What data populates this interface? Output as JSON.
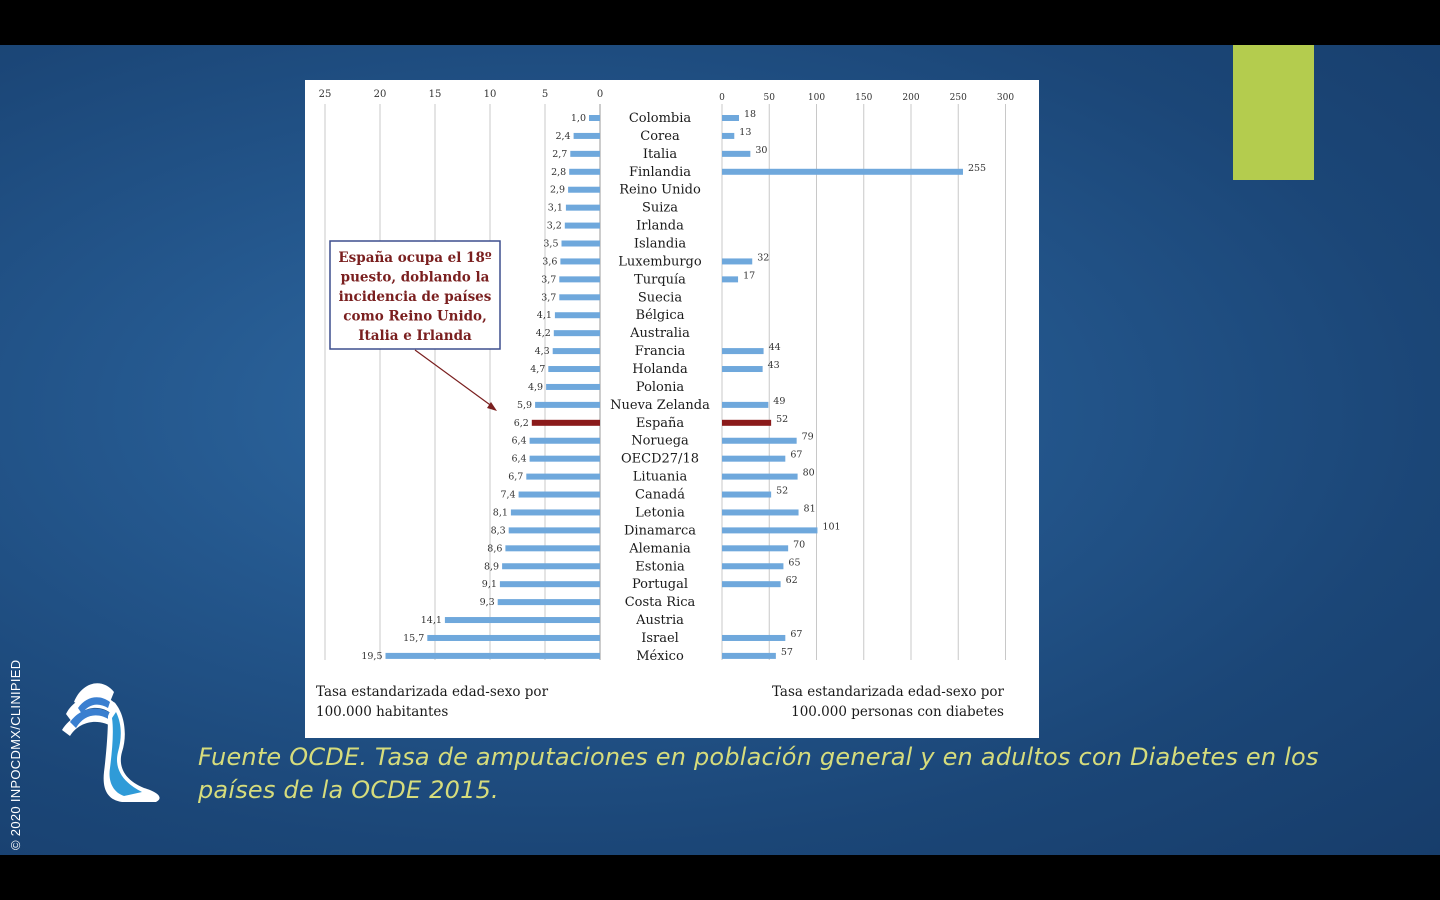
{
  "caption": "Fuente OCDE. Tasa de amputaciones en población general y en adultos con Diabetes en los países de la OCDE 2015.",
  "copyright": "© 2020 INPOCDMX/CLINIPIED",
  "annotation": [
    "España ocupa el 18º",
    "puesto, doblando la",
    "incidencia de países",
    "como Reino Unido,",
    "Italia e Irlanda"
  ],
  "colors": {
    "bar": "#6fa8dc",
    "highlight": "#8b1a1a",
    "accent": "#b4cc4e",
    "caption": "#d6dc7c"
  },
  "chart_data": [
    {
      "type": "bar",
      "orientation": "horizontal-reversed",
      "xlabel": [
        "Tasa estandarizada edad-sexo por",
        "100.000 habitantes"
      ],
      "xlim": [
        0,
        25
      ],
      "xticks": [
        "25",
        "20",
        "15",
        "10",
        "5",
        "0"
      ],
      "categories": [
        "Colombia",
        "Corea",
        "Italia",
        "Finlandia",
        "Reino Unido",
        "Suiza",
        "Irlanda",
        "Islandia",
        "Luxemburgo",
        "Turquía",
        "Suecia",
        "Bélgica",
        "Australia",
        "Francia",
        "Holanda",
        "Polonia",
        "Nueva Zelanda",
        "España",
        "Noruega",
        "OECD27/18",
        "Lituania",
        "Canadá",
        "Letonia",
        "Dinamarca",
        "Alemania",
        "Estonia",
        "Portugal",
        "Costa Rica",
        "Austria",
        "Israel",
        "México"
      ],
      "values": [
        1.0,
        2.4,
        2.7,
        2.8,
        2.9,
        3.1,
        3.2,
        3.5,
        3.6,
        3.7,
        3.7,
        4.1,
        4.2,
        4.3,
        4.7,
        4.9,
        5.9,
        6.2,
        6.4,
        6.4,
        6.7,
        7.4,
        8.1,
        8.3,
        8.6,
        8.9,
        9.1,
        9.3,
        14.1,
        15.7,
        19.5
      ],
      "value_labels": [
        "1,0",
        "2,4",
        "2,7",
        "2,8",
        "2,9",
        "3,1",
        "3,2",
        "3,5",
        "3,6",
        "3,7",
        "3,7",
        "4,1",
        "4,2",
        "4,3",
        "4,7",
        "4,9",
        "5,9",
        "6,2",
        "6,4",
        "6,4",
        "6,7",
        "7,4",
        "8,1",
        "8,3",
        "8,6",
        "8,9",
        "9,1",
        "9,3",
        "14,1",
        "15,7",
        "19,5"
      ],
      "highlight": "España"
    },
    {
      "type": "bar",
      "orientation": "horizontal",
      "xlabel": [
        "Tasa estandarizada edad-sexo por",
        "100.000 personas con diabetes"
      ],
      "xlim": [
        0,
        300
      ],
      "xticks": [
        "0",
        "50",
        "100",
        "150",
        "200",
        "250",
        "300"
      ],
      "categories": [
        "Colombia",
        "Corea",
        "Italia",
        "Finlandia",
        "Reino Unido",
        "Suiza",
        "Irlanda",
        "Islandia",
        "Luxemburgo",
        "Turquía",
        "Suecia",
        "Bélgica",
        "Australia",
        "Francia",
        "Holanda",
        "Polonia",
        "Nueva Zelanda",
        "España",
        "Noruega",
        "OECD27/18",
        "Lituania",
        "Canadá",
        "Letonia",
        "Dinamarca",
        "Alemania",
        "Estonia",
        "Portugal",
        "Costa Rica",
        "Austria",
        "Israel",
        "México"
      ],
      "values": [
        18,
        13,
        30,
        255,
        null,
        null,
        null,
        null,
        32,
        17,
        null,
        null,
        null,
        44,
        43,
        null,
        49,
        52,
        79,
        67,
        80,
        52,
        81,
        101,
        70,
        65,
        62,
        null,
        null,
        67,
        57
      ],
      "highlight": "España"
    }
  ]
}
